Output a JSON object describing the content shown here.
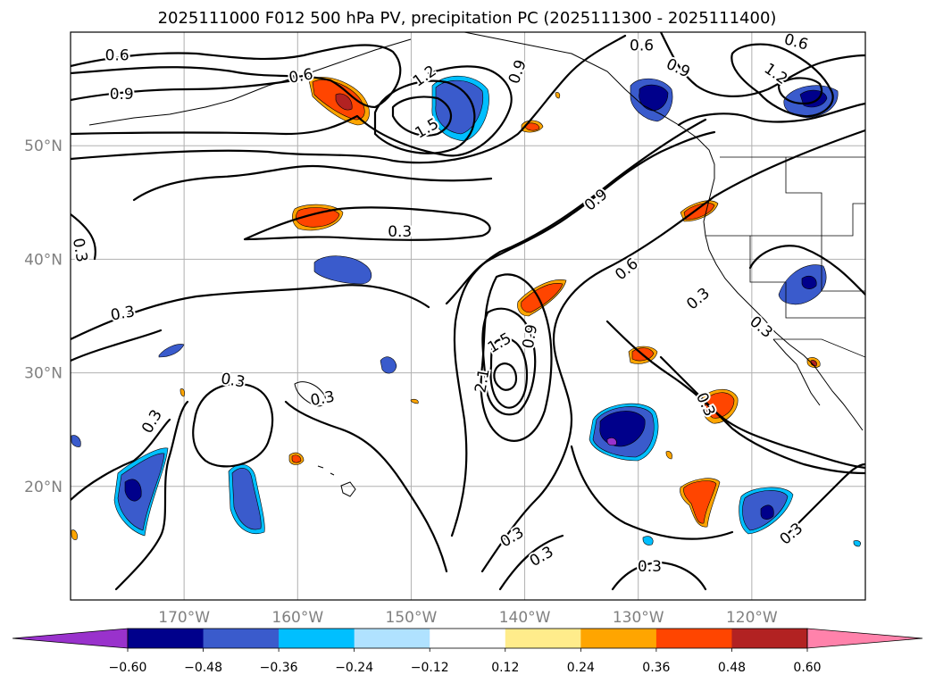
{
  "chart_data": {
    "type": "contour-map",
    "title": "2025111000 F012 500 hPa PV, precipitation PC (2025111300 - 2025111400)",
    "extent": {
      "lon": [
        -180,
        -110
      ],
      "lat": [
        10,
        60
      ]
    },
    "x_ticks": [
      {
        "lon": -170,
        "label": "170°W"
      },
      {
        "lon": -160,
        "label": "160°W"
      },
      {
        "lon": -150,
        "label": "150°W"
      },
      {
        "lon": -140,
        "label": "140°W"
      },
      {
        "lon": -130,
        "label": "130°W"
      },
      {
        "lon": -120,
        "label": "120°W"
      }
    ],
    "y_ticks": [
      {
        "lat": 20,
        "label": "20°N"
      },
      {
        "lat": 30,
        "label": "30°N"
      },
      {
        "lat": 40,
        "label": "40°N"
      },
      {
        "lat": 50,
        "label": "50°N"
      }
    ],
    "grid": true,
    "pv_contour_levels": [
      0.3,
      0.6,
      0.9,
      1.2,
      1.5,
      2.1
    ],
    "contour_labels": [
      {
        "text": "0.6",
        "lon": -175.9,
        "lat": 57.9,
        "angle": 0
      },
      {
        "text": "0.9",
        "lon": -175.5,
        "lat": 54.5,
        "angle": 0
      },
      {
        "text": "0.6",
        "lon": -159.7,
        "lat": 56.1,
        "angle": -10
      },
      {
        "text": "1.2",
        "lon": -148.8,
        "lat": 56.1,
        "angle": -35
      },
      {
        "text": "1.5",
        "lon": -148.6,
        "lat": 51.5,
        "angle": -30
      },
      {
        "text": "0.9",
        "lon": -140.6,
        "lat": 56.5,
        "angle": -70
      },
      {
        "text": "0.6",
        "lon": -129.7,
        "lat": 58.8,
        "angle": 0
      },
      {
        "text": "0.9",
        "lon": -126.5,
        "lat": 56.8,
        "angle": 25
      },
      {
        "text": "0.6",
        "lon": -116.1,
        "lat": 59.1,
        "angle": 15
      },
      {
        "text": "1.2",
        "lon": -117.9,
        "lat": 56.3,
        "angle": 35
      },
      {
        "text": "0.9",
        "lon": -133.7,
        "lat": 45.2,
        "angle": -40
      },
      {
        "text": "0.3",
        "lon": -151.0,
        "lat": 42.4,
        "angle": 0
      },
      {
        "text": "0.3",
        "lon": -179.2,
        "lat": 40.8,
        "angle": 80
      },
      {
        "text": "0.6",
        "lon": -131.0,
        "lat": 39.1,
        "angle": -40
      },
      {
        "text": "0.3",
        "lon": -175.4,
        "lat": 35.2,
        "angle": -10
      },
      {
        "text": "0.3",
        "lon": -124.7,
        "lat": 36.5,
        "angle": -40
      },
      {
        "text": "0.3",
        "lon": -119.2,
        "lat": 34.0,
        "angle": 40
      },
      {
        "text": "1.5",
        "lon": -142.2,
        "lat": 32.6,
        "angle": -30
      },
      {
        "text": "0.9",
        "lon": -139.5,
        "lat": 33.2,
        "angle": -80
      },
      {
        "text": "2.1",
        "lon": -143.7,
        "lat": 29.3,
        "angle": -80
      },
      {
        "text": "0.3",
        "lon": -165.7,
        "lat": 29.3,
        "angle": 10
      },
      {
        "text": "0.3",
        "lon": -157.8,
        "lat": 27.7,
        "angle": -10
      },
      {
        "text": "0.3",
        "lon": -172.8,
        "lat": 25.7,
        "angle": -60
      },
      {
        "text": "0.3",
        "lon": -124.1,
        "lat": 27.2,
        "angle": 65
      },
      {
        "text": "0.3",
        "lon": -141.1,
        "lat": 15.5,
        "angle": -30
      },
      {
        "text": "0.3",
        "lon": -138.5,
        "lat": 13.8,
        "angle": -30
      },
      {
        "text": "0.3",
        "lon": -129.0,
        "lat": 12.9,
        "angle": 0
      },
      {
        "text": "0.3",
        "lon": -116.5,
        "lat": 15.8,
        "angle": -40
      }
    ],
    "colorbar": {
      "type": "precipitation PC",
      "extend": "both",
      "ticks": [
        "−0.60",
        "−0.48",
        "−0.36",
        "−0.24",
        "−0.12",
        "0.12",
        "0.24",
        "0.36",
        "0.48",
        "0.60"
      ],
      "bins": [
        {
          "range": "< -0.60",
          "color": "#9932cc"
        },
        {
          "range": "-0.60 to -0.48",
          "color": "#00008b"
        },
        {
          "range": "-0.48 to -0.36",
          "color": "#3a5bcc"
        },
        {
          "range": "-0.36 to -0.24",
          "color": "#00bfff"
        },
        {
          "range": "-0.24 to -0.12",
          "color": "#b0e2ff"
        },
        {
          "range": "-0.12 to 0.12",
          "color": "#ffffff"
        },
        {
          "range": "0.12 to 0.24",
          "color": "#ffec8b"
        },
        {
          "range": "0.24 to 0.36",
          "color": "#ffa500"
        },
        {
          "range": "0.36 to 0.48",
          "color": "#ff4500"
        },
        {
          "range": "0.48 to 0.60",
          "color": "#b22222"
        },
        {
          "range": "> 0.60",
          "color": "#ff82ab"
        }
      ]
    }
  }
}
